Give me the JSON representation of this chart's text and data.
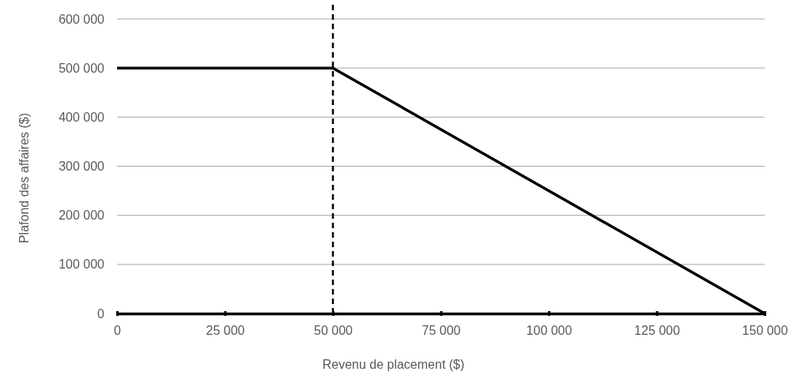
{
  "chart_data": {
    "type": "line",
    "xlabel": "Revenu de placement ($)",
    "ylabel": "Plafond des affaires ($)",
    "series": [
      {
        "color": "#000000",
        "x": [
          0,
          50000,
          150000
        ],
        "values": [
          500000,
          500000,
          0
        ]
      }
    ],
    "xlim": [
      0,
      150000
    ],
    "ylim": [
      0,
      600000
    ],
    "xticks": [
      0,
      {
        "value": 25000,
        "label": "25 000"
      },
      {
        "value": 50000,
        "label": "50 000"
      },
      {
        "value": 75000,
        "label": "75 000"
      },
      {
        "value": 100000,
        "label": "100 000"
      },
      {
        "value": 125000,
        "label": "125 000"
      },
      {
        "value": 150000,
        "label": "150 000"
      }
    ],
    "yticks": [
      0,
      {
        "value": 100000,
        "label": "100 000"
      },
      {
        "value": 200000,
        "label": "200 000"
      },
      {
        "value": 300000,
        "label": "300 000"
      },
      {
        "value": 400000,
        "label": "400 000"
      },
      {
        "value": 500000,
        "label": "500 000"
      },
      {
        "value": 600000,
        "label": "600 000"
      }
    ],
    "ref_lines": [
      {
        "axis": "x",
        "value": 50000,
        "color": "#000000",
        "line_style": "dashed"
      }
    ],
    "grid": "y",
    "marker": "none",
    "line_style": "solid"
  }
}
